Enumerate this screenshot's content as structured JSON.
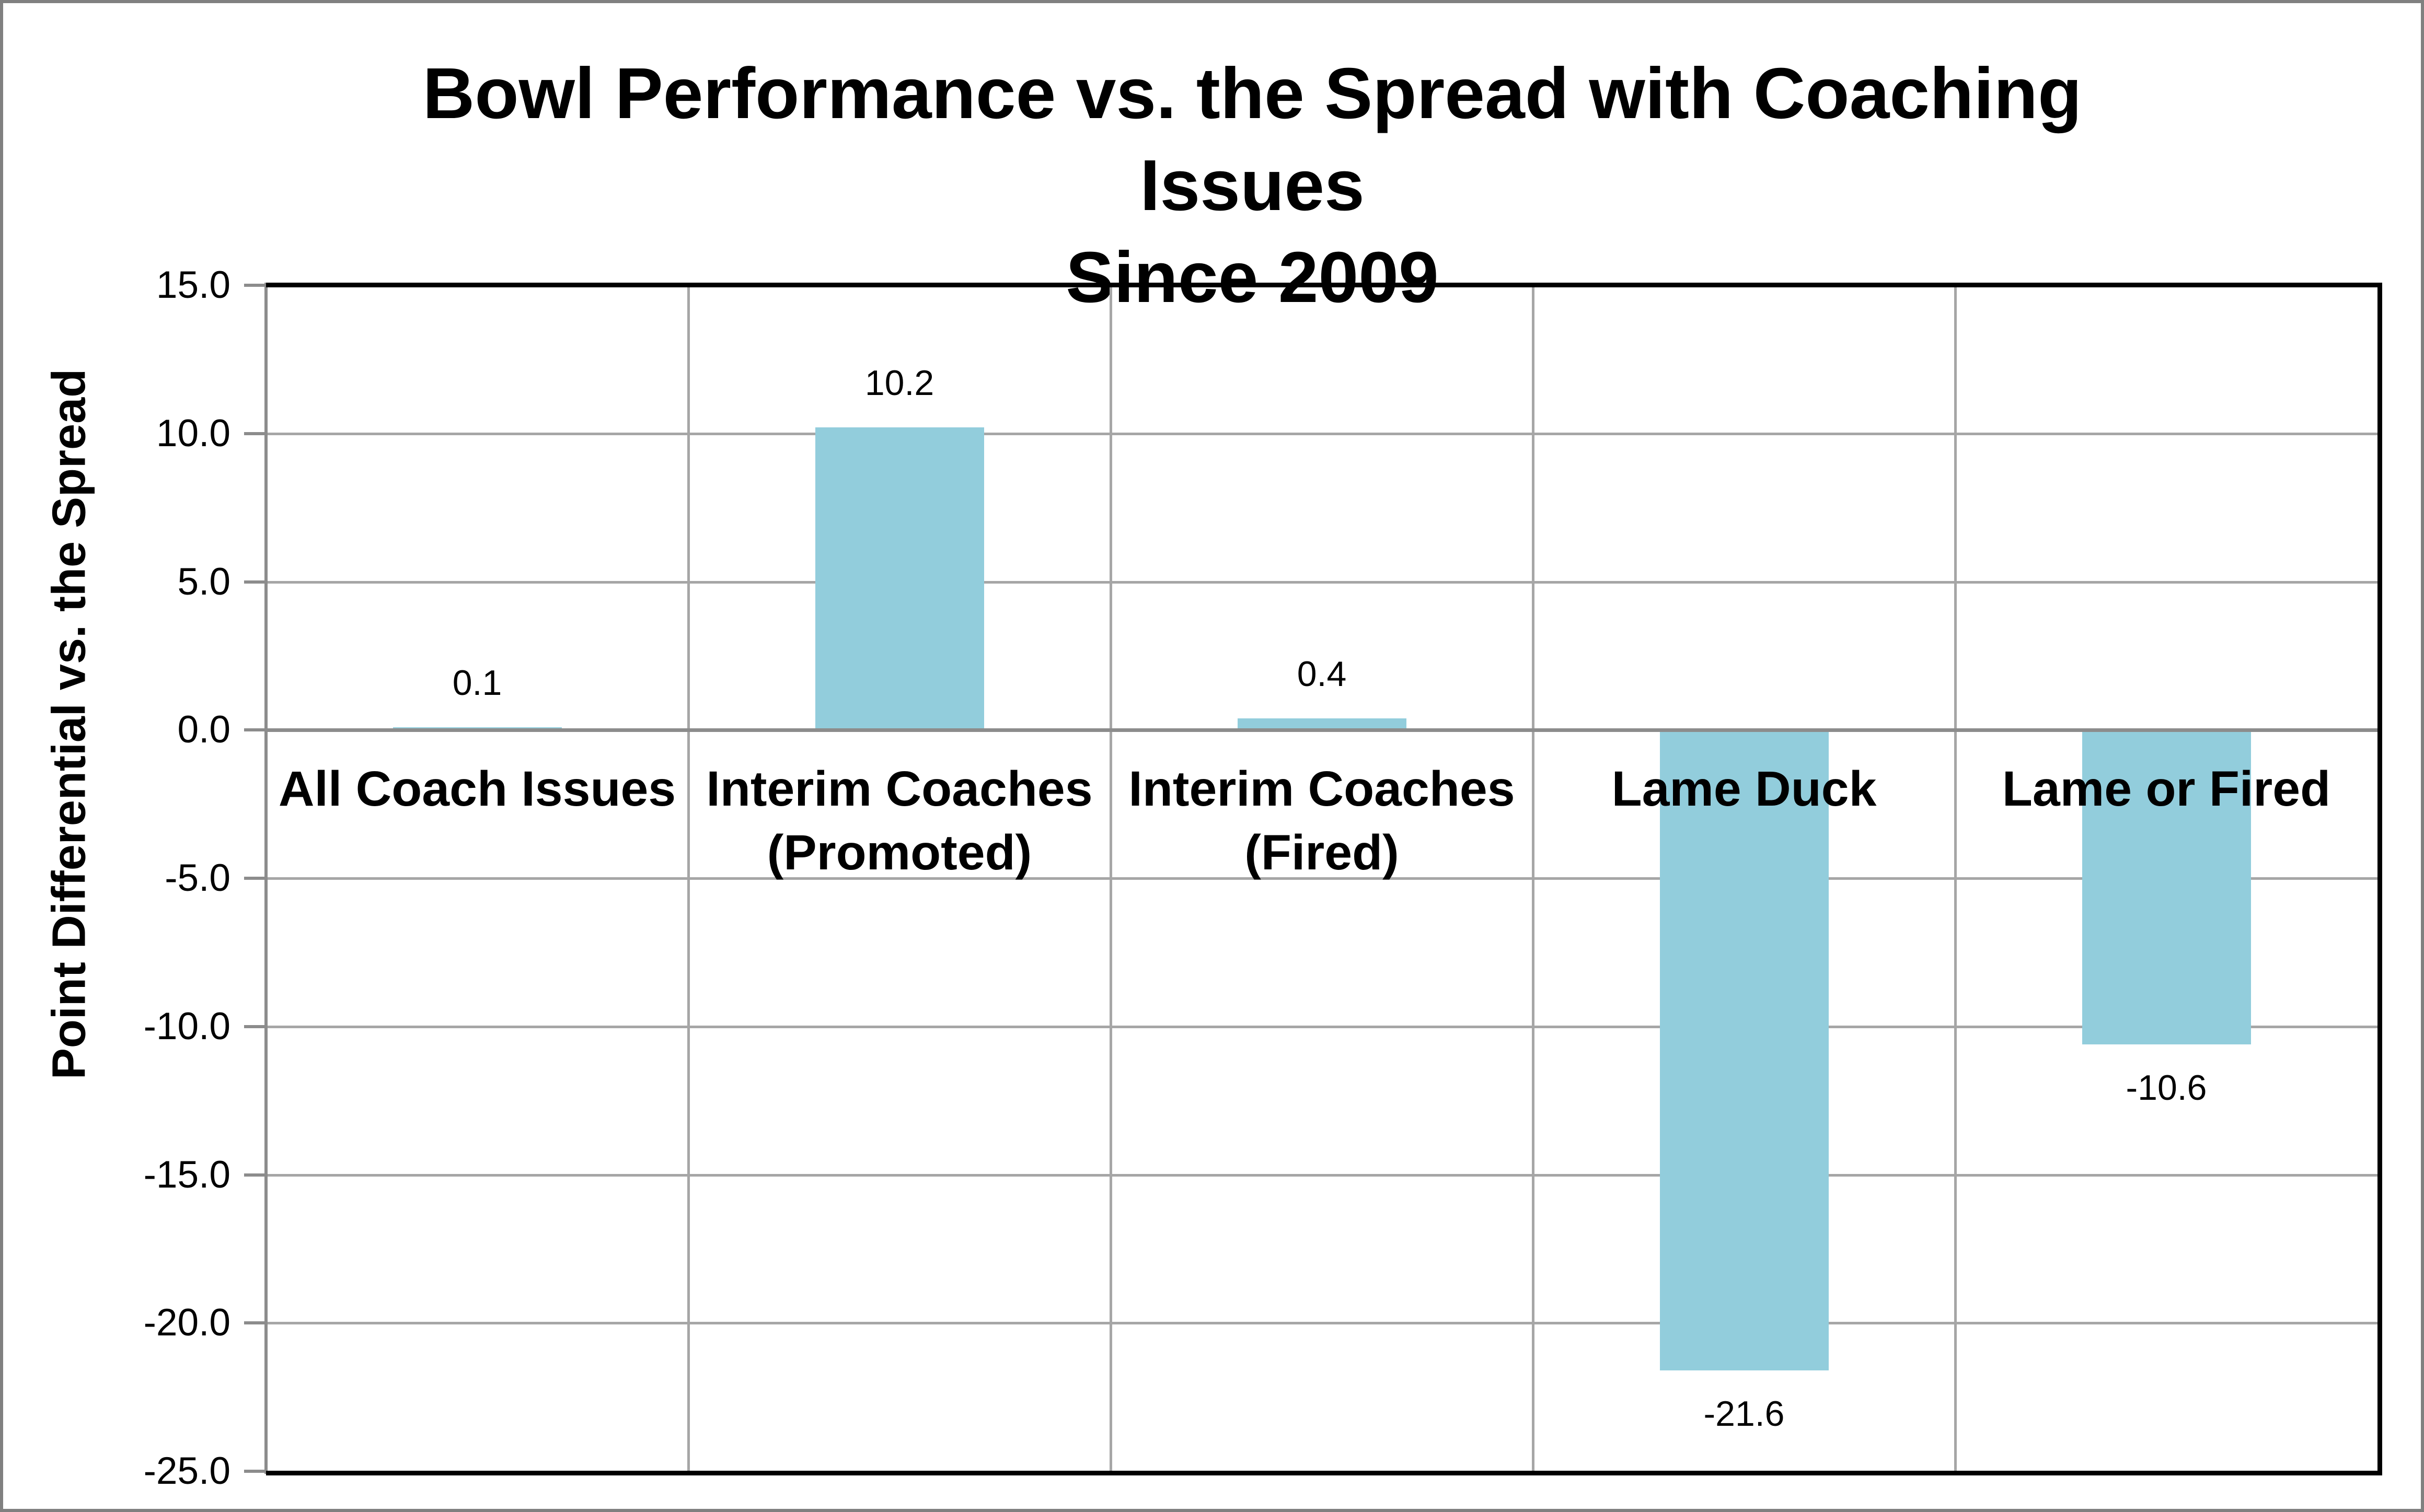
{
  "chart_data": {
    "type": "bar",
    "title": "Bowl Performance vs. the Spread with Coaching Issues Since 2009",
    "title_lines": [
      "Bowl Performance vs. the Spread with Coaching Issues",
      "Since 2009"
    ],
    "ylabel": "Point Differential vs. the Spread",
    "xlabel": "",
    "categories": [
      "All Coach Issues",
      "Interim Coaches (Promoted)",
      "Interim Coaches (Fired)",
      "Lame Duck",
      "Lame or Fired"
    ],
    "category_lines": [
      [
        "All Coach Issues"
      ],
      [
        "Interim Coaches",
        "(Promoted)"
      ],
      [
        "Interim Coaches",
        "(Fired)"
      ],
      [
        "Lame Duck"
      ],
      [
        "Lame or Fired"
      ]
    ],
    "values": [
      0.1,
      10.2,
      0.4,
      -21.6,
      -10.6
    ],
    "data_labels": [
      "0.1",
      "10.2",
      "0.4",
      "-21.6",
      "-10.6"
    ],
    "ylim": [
      -25,
      15
    ],
    "ytick_step": 5,
    "yticks": [
      15,
      10,
      5,
      0,
      -5,
      -10,
      -15,
      -20,
      -25
    ],
    "ytick_labels": [
      "15.0",
      "10.0",
      "5.0",
      "0.0",
      "-5.0",
      "-10.0",
      "-15.0",
      "-20.0",
      "-25.0"
    ],
    "grid": true,
    "legend_position": "none",
    "bar_color": "#92CDDC",
    "gridline_color": "#A6A6A6",
    "axis_line_color": "#8C8C8C",
    "zero_line_color": "#8C8C8C",
    "frame_color": "#000000",
    "canvas_border_color": "#808080",
    "text_color": "#000000"
  }
}
